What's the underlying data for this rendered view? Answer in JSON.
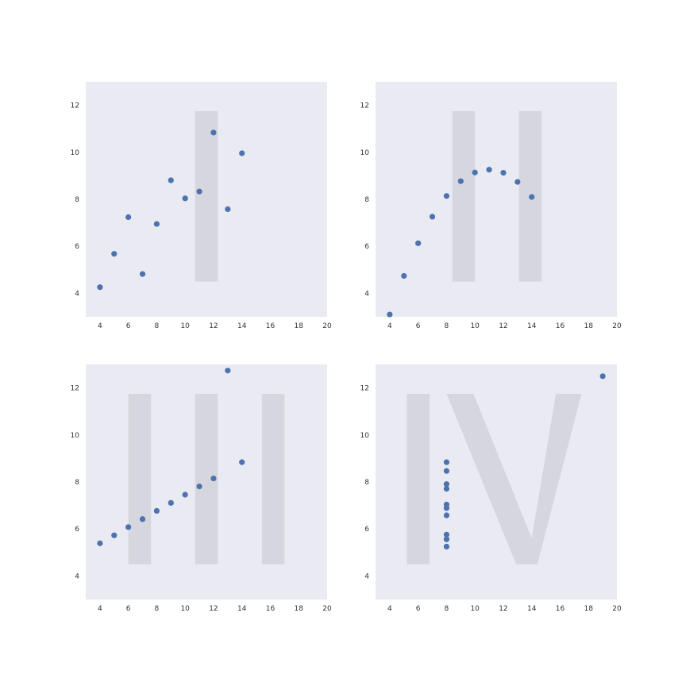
{
  "chart_data": [
    {
      "type": "scatter",
      "numeral": "I",
      "x": [
        10,
        8,
        13,
        9,
        11,
        14,
        6,
        4,
        12,
        7,
        5
      ],
      "y": [
        8.04,
        6.95,
        7.58,
        8.81,
        8.33,
        9.96,
        7.24,
        4.26,
        10.84,
        4.82,
        5.68
      ],
      "xlim": [
        3,
        20
      ],
      "ylim": [
        3,
        13
      ],
      "xticks": [
        4,
        6,
        8,
        10,
        12,
        14,
        16,
        18,
        20
      ],
      "yticks": [
        4,
        6,
        8,
        10,
        12
      ],
      "grid": false
    },
    {
      "type": "scatter",
      "numeral": "II",
      "x": [
        10,
        8,
        13,
        9,
        11,
        14,
        6,
        4,
        12,
        7,
        5
      ],
      "y": [
        9.14,
        8.14,
        8.74,
        8.77,
        9.26,
        8.1,
        6.13,
        3.1,
        9.13,
        7.26,
        4.74
      ],
      "xlim": [
        3,
        20
      ],
      "ylim": [
        3,
        13
      ],
      "xticks": [
        4,
        6,
        8,
        10,
        12,
        14,
        16,
        18,
        20
      ],
      "yticks": [
        4,
        6,
        8,
        10,
        12
      ],
      "grid": false
    },
    {
      "type": "scatter",
      "numeral": "III",
      "x": [
        10,
        8,
        13,
        9,
        11,
        14,
        6,
        4,
        12,
        7,
        5
      ],
      "y": [
        7.46,
        6.77,
        12.74,
        7.11,
        7.81,
        8.84,
        6.08,
        5.39,
        8.15,
        6.42,
        5.73
      ],
      "xlim": [
        3,
        20
      ],
      "ylim": [
        3,
        13
      ],
      "xticks": [
        4,
        6,
        8,
        10,
        12,
        14,
        16,
        18,
        20
      ],
      "yticks": [
        4,
        6,
        8,
        10,
        12
      ],
      "grid": false
    },
    {
      "type": "scatter",
      "numeral": "IV",
      "x": [
        8,
        8,
        8,
        8,
        8,
        8,
        8,
        19,
        8,
        8,
        8
      ],
      "y": [
        6.58,
        5.76,
        7.71,
        8.84,
        8.47,
        7.04,
        5.25,
        12.5,
        5.56,
        7.91,
        6.89
      ],
      "xlim": [
        3,
        20
      ],
      "ylim": [
        3,
        13
      ],
      "xticks": [
        4,
        6,
        8,
        10,
        12,
        14,
        16,
        18,
        20
      ],
      "yticks": [
        4,
        6,
        8,
        10,
        12
      ],
      "grid": false
    }
  ],
  "colors": {
    "axes_background": "#EAEAF2",
    "marker": "#4C72B0",
    "numeral": "#D6D6DE"
  }
}
